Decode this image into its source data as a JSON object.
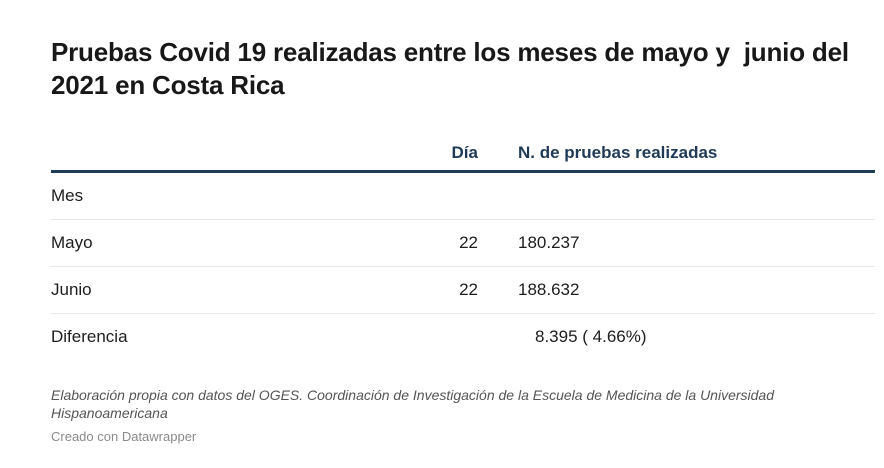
{
  "chart_data": {
    "type": "table",
    "title": "Pruebas Covid 19 realizadas entre los meses de mayo y  junio del 2021 en Costa Rica",
    "columns": [
      {
        "label": "",
        "align": "left"
      },
      {
        "label": "Día",
        "align": "right"
      },
      {
        "label": "N. de pruebas realizadas",
        "align": "left"
      }
    ],
    "rows": [
      {
        "mes": "Mes",
        "dia": "",
        "pruebas": ""
      },
      {
        "mes": "Mayo",
        "dia": "22",
        "pruebas": "180.237"
      },
      {
        "mes": "Junio",
        "dia": "22",
        "pruebas": "188.632"
      },
      {
        "mes": "Diferencia",
        "dia": "",
        "pruebas": "8.395 ( 4.66%)"
      }
    ],
    "notes": "Elaboración propia con datos del OGES. Coordinación de Investigación de la Escuela de Medicina de la Universidad Hispanoamericana",
    "credit": "Creado con Datawrapper"
  },
  "colors": {
    "header_text": "#1f3a57",
    "header_rule": "#1f3a57",
    "row_divider": "#e6e6e6"
  }
}
